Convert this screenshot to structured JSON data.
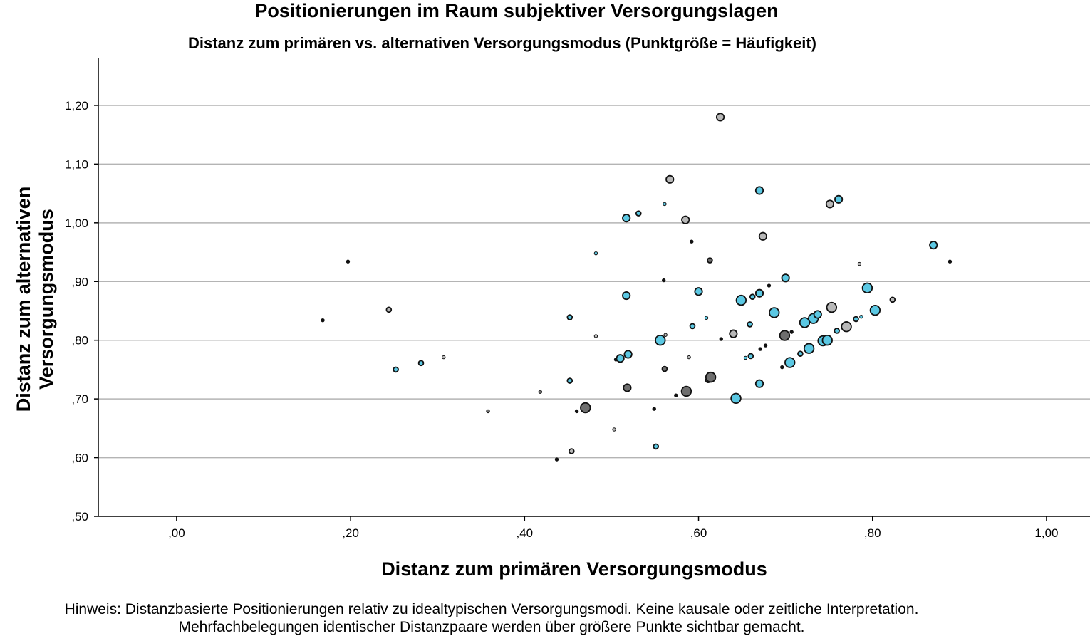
{
  "chart_data": {
    "type": "scatter",
    "title": "Positionierungen im Raum subjektiver Versorgungslagen",
    "subtitle": "Distanz zum primären vs. alternativen Versorgungsmodus (Punktgröße = Häufigkeit)",
    "xlabel": "Distanz zum primären Versorgungsmodus",
    "ylabel": "Distanz zum alternativen Versorgungsmodus",
    "xlim": [
      -0.09,
      1.05
    ],
    "ylim": [
      0.5,
      1.28
    ],
    "xticks": [
      0.0,
      0.2,
      0.4,
      0.6,
      0.8,
      1.0
    ],
    "xtick_labels": [
      ",00",
      ",20",
      ",40",
      ",60",
      ",80",
      "1,00"
    ],
    "yticks": [
      0.5,
      0.6,
      0.7,
      0.8,
      0.9,
      1.0,
      1.1,
      1.2
    ],
    "ytick_labels": [
      ",50",
      ",60",
      ",70",
      ",80",
      ",90",
      "1,00",
      "1,10",
      "1,20"
    ],
    "grid": "horizontal",
    "colors": {
      "blue": "#5bc8e3",
      "gray": "#b8b8b8",
      "dark": "#6e6e6e",
      "black": "#111111",
      "gridline": "#b4b4b4"
    },
    "note": [
      "Hinweis: Distanzbasierte Positionierungen relativ zu idealtypischen Versorgungsmodi. Keine kausale oder zeitliche Interpretation.",
      "Mehrfachbelegungen identischer Distanzpaare werden über größere Punkte sichtbar gemacht."
    ],
    "points": [
      {
        "x": 0.168,
        "y": 0.834,
        "f": 1,
        "c": "black"
      },
      {
        "x": 0.197,
        "y": 0.934,
        "f": 1,
        "c": "black"
      },
      {
        "x": 0.244,
        "y": 0.852,
        "f": 2,
        "c": "gray"
      },
      {
        "x": 0.252,
        "y": 0.75,
        "f": 2,
        "c": "blue"
      },
      {
        "x": 0.281,
        "y": 0.761,
        "f": 2,
        "c": "blue"
      },
      {
        "x": 0.307,
        "y": 0.771,
        "f": 1,
        "c": "gray"
      },
      {
        "x": 0.358,
        "y": 0.679,
        "f": 1,
        "c": "dark"
      },
      {
        "x": 0.418,
        "y": 0.712,
        "f": 1,
        "c": "dark"
      },
      {
        "x": 0.437,
        "y": 0.597,
        "f": 1,
        "c": "black"
      },
      {
        "x": 0.452,
        "y": 0.839,
        "f": 2,
        "c": "blue"
      },
      {
        "x": 0.452,
        "y": 0.731,
        "f": 2,
        "c": "blue"
      },
      {
        "x": 0.454,
        "y": 0.611,
        "f": 2,
        "c": "gray"
      },
      {
        "x": 0.46,
        "y": 0.679,
        "f": 1,
        "c": "black"
      },
      {
        "x": 0.47,
        "y": 0.685,
        "f": 4,
        "c": "dark"
      },
      {
        "x": 0.482,
        "y": 0.948,
        "f": 1,
        "c": "blue"
      },
      {
        "x": 0.482,
        "y": 0.807,
        "f": 1,
        "c": "gray"
      },
      {
        "x": 0.503,
        "y": 0.648,
        "f": 1,
        "c": "gray"
      },
      {
        "x": 0.505,
        "y": 0.767,
        "f": 1,
        "c": "black"
      },
      {
        "x": 0.51,
        "y": 0.769,
        "f": 3,
        "c": "blue"
      },
      {
        "x": 0.517,
        "y": 1.008,
        "f": 3,
        "c": "blue"
      },
      {
        "x": 0.517,
        "y": 0.876,
        "f": 3,
        "c": "blue"
      },
      {
        "x": 0.518,
        "y": 0.719,
        "f": 3,
        "c": "dark"
      },
      {
        "x": 0.519,
        "y": 0.776,
        "f": 3,
        "c": "blue"
      },
      {
        "x": 0.531,
        "y": 1.016,
        "f": 2,
        "c": "blue"
      },
      {
        "x": 0.549,
        "y": 0.683,
        "f": 1,
        "c": "black"
      },
      {
        "x": 0.551,
        "y": 0.619,
        "f": 2,
        "c": "blue"
      },
      {
        "x": 0.556,
        "y": 0.8,
        "f": 4,
        "c": "blue"
      },
      {
        "x": 0.56,
        "y": 0.902,
        "f": 1,
        "c": "black"
      },
      {
        "x": 0.561,
        "y": 1.032,
        "f": 1,
        "c": "blue"
      },
      {
        "x": 0.561,
        "y": 0.751,
        "f": 2,
        "c": "dark"
      },
      {
        "x": 0.562,
        "y": 0.809,
        "f": 1,
        "c": "gray"
      },
      {
        "x": 0.567,
        "y": 1.074,
        "f": 3,
        "c": "gray"
      },
      {
        "x": 0.574,
        "y": 0.706,
        "f": 1,
        "c": "black"
      },
      {
        "x": 0.585,
        "y": 1.005,
        "f": 3,
        "c": "gray"
      },
      {
        "x": 0.586,
        "y": 0.713,
        "f": 4,
        "c": "dark"
      },
      {
        "x": 0.589,
        "y": 0.771,
        "f": 1,
        "c": "gray"
      },
      {
        "x": 0.592,
        "y": 0.968,
        "f": 1,
        "c": "black"
      },
      {
        "x": 0.593,
        "y": 0.824,
        "f": 2,
        "c": "blue"
      },
      {
        "x": 0.6,
        "y": 0.883,
        "f": 3,
        "c": "blue"
      },
      {
        "x": 0.609,
        "y": 0.838,
        "f": 1,
        "c": "blue"
      },
      {
        "x": 0.611,
        "y": 0.732,
        "f": 2,
        "c": "gray"
      },
      {
        "x": 0.613,
        "y": 0.936,
        "f": 2,
        "c": "dark"
      },
      {
        "x": 0.614,
        "y": 0.737,
        "f": 4,
        "c": "dark"
      },
      {
        "x": 0.625,
        "y": 1.18,
        "f": 3,
        "c": "gray"
      },
      {
        "x": 0.626,
        "y": 0.802,
        "f": 1,
        "c": "black"
      },
      {
        "x": 0.64,
        "y": 0.811,
        "f": 3,
        "c": "gray"
      },
      {
        "x": 0.643,
        "y": 0.701,
        "f": 4,
        "c": "blue"
      },
      {
        "x": 0.649,
        "y": 0.868,
        "f": 4,
        "c": "blue"
      },
      {
        "x": 0.654,
        "y": 0.77,
        "f": 1,
        "c": "blue"
      },
      {
        "x": 0.659,
        "y": 0.827,
        "f": 2,
        "c": "blue"
      },
      {
        "x": 0.66,
        "y": 0.773,
        "f": 2,
        "c": "blue"
      },
      {
        "x": 0.662,
        "y": 0.874,
        "f": 2,
        "c": "blue"
      },
      {
        "x": 0.67,
        "y": 1.055,
        "f": 3,
        "c": "blue"
      },
      {
        "x": 0.67,
        "y": 0.88,
        "f": 3,
        "c": "blue"
      },
      {
        "x": 0.67,
        "y": 0.726,
        "f": 3,
        "c": "blue"
      },
      {
        "x": 0.671,
        "y": 0.785,
        "f": 1,
        "c": "black"
      },
      {
        "x": 0.674,
        "y": 0.977,
        "f": 3,
        "c": "gray"
      },
      {
        "x": 0.677,
        "y": 0.791,
        "f": 1,
        "c": "black"
      },
      {
        "x": 0.681,
        "y": 0.893,
        "f": 1,
        "c": "black"
      },
      {
        "x": 0.687,
        "y": 0.847,
        "f": 4,
        "c": "blue"
      },
      {
        "x": 0.696,
        "y": 0.754,
        "f": 1,
        "c": "black"
      },
      {
        "x": 0.699,
        "y": 0.808,
        "f": 4,
        "c": "dark"
      },
      {
        "x": 0.7,
        "y": 0.906,
        "f": 3,
        "c": "blue"
      },
      {
        "x": 0.705,
        "y": 0.762,
        "f": 4,
        "c": "blue"
      },
      {
        "x": 0.707,
        "y": 0.814,
        "f": 1,
        "c": "black"
      },
      {
        "x": 0.717,
        "y": 0.777,
        "f": 2,
        "c": "blue"
      },
      {
        "x": 0.722,
        "y": 0.83,
        "f": 4,
        "c": "blue"
      },
      {
        "x": 0.727,
        "y": 0.786,
        "f": 4,
        "c": "blue"
      },
      {
        "x": 0.732,
        "y": 0.837,
        "f": 4,
        "c": "blue"
      },
      {
        "x": 0.737,
        "y": 0.844,
        "f": 3,
        "c": "blue"
      },
      {
        "x": 0.743,
        "y": 0.799,
        "f": 4,
        "c": "blue"
      },
      {
        "x": 0.748,
        "y": 0.8,
        "f": 4,
        "c": "blue"
      },
      {
        "x": 0.751,
        "y": 1.032,
        "f": 3,
        "c": "gray"
      },
      {
        "x": 0.753,
        "y": 0.856,
        "f": 4,
        "c": "gray"
      },
      {
        "x": 0.759,
        "y": 0.816,
        "f": 2,
        "c": "blue"
      },
      {
        "x": 0.761,
        "y": 1.04,
        "f": 3,
        "c": "blue"
      },
      {
        "x": 0.77,
        "y": 0.823,
        "f": 4,
        "c": "gray"
      },
      {
        "x": 0.781,
        "y": 0.836,
        "f": 2,
        "c": "blue"
      },
      {
        "x": 0.785,
        "y": 0.93,
        "f": 1,
        "c": "gray"
      },
      {
        "x": 0.787,
        "y": 0.84,
        "f": 1,
        "c": "blue"
      },
      {
        "x": 0.794,
        "y": 0.889,
        "f": 4,
        "c": "blue"
      },
      {
        "x": 0.803,
        "y": 0.851,
        "f": 4,
        "c": "blue"
      },
      {
        "x": 0.823,
        "y": 0.869,
        "f": 2,
        "c": "gray"
      },
      {
        "x": 0.87,
        "y": 0.962,
        "f": 3,
        "c": "blue"
      },
      {
        "x": 0.889,
        "y": 0.934,
        "f": 1,
        "c": "black"
      }
    ]
  }
}
